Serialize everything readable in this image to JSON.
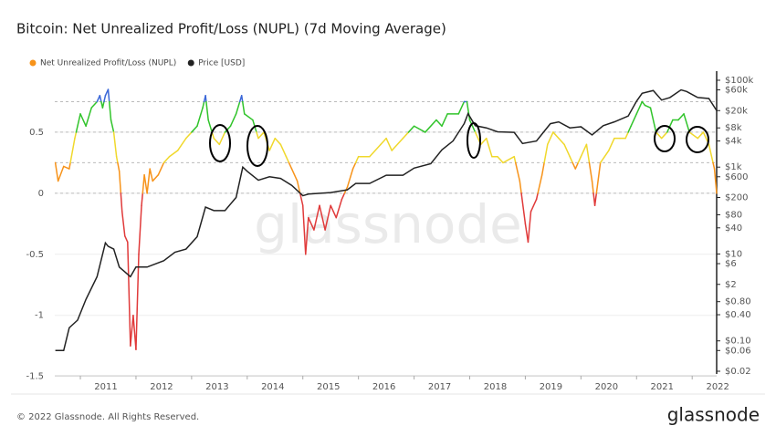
{
  "chart_data": {
    "type": "line",
    "title": "Bitcoin: Net Unrealized Profit/Loss (NUPL) (7d Moving Average)",
    "watermark": "glassnode",
    "footer": "© 2022 Glassnode. All Rights Reserved.",
    "brand": "glassnode",
    "xlim": [
      2010.54,
      2022.44
    ],
    "xticks": [
      2011,
      2012,
      2013,
      2014,
      2015,
      2016,
      2017,
      2018,
      2019,
      2020,
      2021,
      2022
    ],
    "ylim": [
      -1.48,
      1.0
    ],
    "yticks": [
      -1.5,
      -1,
      -0.5,
      0,
      0.5
    ],
    "y2lim": [
      0.0173,
      162000
    ],
    "y2log": true,
    "y2ticks": [
      {
        "value": 0.02,
        "label": "$0.02"
      },
      {
        "value": 0.06,
        "label": "$0.06"
      },
      {
        "value": 0.1,
        "label": "$0.10"
      },
      {
        "value": 0.4,
        "label": "$0.40"
      },
      {
        "value": 0.8,
        "label": "$0.80"
      },
      {
        "value": 2,
        "label": "$2"
      },
      {
        "value": 6,
        "label": "$6"
      },
      {
        "value": 10,
        "label": "$10"
      },
      {
        "value": 40,
        "label": "$40"
      },
      {
        "value": 80,
        "label": "$80"
      },
      {
        "value": 200,
        "label": "$200"
      },
      {
        "value": 600,
        "label": "$600"
      },
      {
        "value": 1000,
        "label": "$1k"
      },
      {
        "value": 4000,
        "label": "$4k"
      },
      {
        "value": 8000,
        "label": "$8k"
      },
      {
        "value": 20000,
        "label": "$20k"
      },
      {
        "value": 60000,
        "label": "$60k"
      },
      {
        "value": 100000,
        "label": "$100k"
      }
    ],
    "zones": [
      {
        "below": 0,
        "color": "#e03a3a"
      },
      {
        "below": 0.25,
        "color": "#f7931a"
      },
      {
        "below": 0.5,
        "color": "#f0d82c"
      },
      {
        "below": 0.75,
        "color": "#31c42b"
      },
      {
        "color": "#3a67d8"
      }
    ],
    "series": [
      {
        "name": "Net Unrealized Profit/Loss (NUPL)",
        "color": "#f7931a",
        "zoned": true,
        "x": [
          2010.55,
          2010.6,
          2010.7,
          2010.8,
          2010.9,
          2011.0,
          2011.1,
          2011.2,
          2011.3,
          2011.35,
          2011.4,
          2011.45,
          2011.5,
          2011.55,
          2011.6,
          2011.65,
          2011.7,
          2011.75,
          2011.8,
          2011.85,
          2011.9,
          2011.95,
          2012.0,
          2012.05,
          2012.1,
          2012.15,
          2012.2,
          2012.25,
          2012.3,
          2012.4,
          2012.5,
          2012.6,
          2012.75,
          2012.9,
          2013.0,
          2013.1,
          2013.2,
          2013.25,
          2013.3,
          2013.4,
          2013.5,
          2013.6,
          2013.7,
          2013.8,
          2013.9,
          2013.95,
          2014.1,
          2014.2,
          2014.3,
          2014.4,
          2014.5,
          2014.6,
          2014.7,
          2014.8,
          2014.9,
          2015.0,
          2015.05,
          2015.1,
          2015.2,
          2015.3,
          2015.4,
          2015.5,
          2015.6,
          2015.7,
          2015.8,
          2015.9,
          2016.0,
          2016.2,
          2016.4,
          2016.5,
          2016.6,
          2016.8,
          2016.9,
          2017.0,
          2017.2,
          2017.4,
          2017.5,
          2017.6,
          2017.8,
          2017.9,
          2017.95,
          2018.0,
          2018.1,
          2018.2,
          2018.3,
          2018.4,
          2018.5,
          2018.6,
          2018.8,
          2018.9,
          2019.0,
          2019.05,
          2019.1,
          2019.2,
          2019.3,
          2019.4,
          2019.5,
          2019.6,
          2019.7,
          2019.8,
          2019.9,
          2020.0,
          2020.1,
          2020.2,
          2020.25,
          2020.35,
          2020.5,
          2020.6,
          2020.7,
          2020.8,
          2020.9,
          2021.0,
          2021.1,
          2021.15,
          2021.25,
          2021.35,
          2021.45,
          2021.55,
          2021.65,
          2021.75,
          2021.85,
          2021.95,
          2022.1,
          2022.2,
          2022.3,
          2022.4,
          2022.44
        ],
        "values": [
          0.25,
          0.1,
          0.22,
          0.2,
          0.45,
          0.65,
          0.55,
          0.7,
          0.75,
          0.8,
          0.7,
          0.8,
          0.85,
          0.6,
          0.5,
          0.3,
          0.18,
          -0.15,
          -0.35,
          -0.4,
          -1.25,
          -1.0,
          -1.28,
          -0.5,
          -0.1,
          0.15,
          0.0,
          0.2,
          0.1,
          0.15,
          0.25,
          0.3,
          0.35,
          0.45,
          0.5,
          0.55,
          0.7,
          0.8,
          0.6,
          0.45,
          0.4,
          0.5,
          0.55,
          0.65,
          0.8,
          0.65,
          0.6,
          0.45,
          0.5,
          0.35,
          0.45,
          0.4,
          0.3,
          0.2,
          0.1,
          -0.1,
          -0.5,
          -0.2,
          -0.3,
          -0.1,
          -0.3,
          -0.1,
          -0.2,
          -0.05,
          0.05,
          0.2,
          0.3,
          0.3,
          0.4,
          0.45,
          0.35,
          0.45,
          0.5,
          0.55,
          0.5,
          0.6,
          0.55,
          0.65,
          0.65,
          0.75,
          0.75,
          0.6,
          0.5,
          0.4,
          0.45,
          0.3,
          0.3,
          0.25,
          0.3,
          0.1,
          -0.25,
          -0.4,
          -0.15,
          -0.05,
          0.15,
          0.4,
          0.5,
          0.45,
          0.4,
          0.3,
          0.2,
          0.3,
          0.4,
          0.1,
          -0.1,
          0.25,
          0.35,
          0.45,
          0.45,
          0.45,
          0.55,
          0.65,
          0.75,
          0.72,
          0.7,
          0.5,
          0.45,
          0.5,
          0.6,
          0.6,
          0.65,
          0.5,
          0.45,
          0.5,
          0.4,
          0.2,
          0.0
        ]
      },
      {
        "name": "Price [USD]",
        "color": "#222222",
        "axis": "y2",
        "x": [
          2010.55,
          2010.7,
          2010.8,
          2010.95,
          2011.1,
          2011.3,
          2011.45,
          2011.5,
          2011.6,
          2011.7,
          2011.9,
          2012.0,
          2012.2,
          2012.5,
          2012.7,
          2012.9,
          2013.1,
          2013.25,
          2013.4,
          2013.6,
          2013.8,
          2013.92,
          2014.0,
          2014.2,
          2014.4,
          2014.6,
          2014.8,
          2015.0,
          2015.1,
          2015.5,
          2015.8,
          2015.95,
          2016.2,
          2016.5,
          2016.8,
          2017.0,
          2017.3,
          2017.5,
          2017.7,
          2017.9,
          2017.97,
          2018.1,
          2018.3,
          2018.5,
          2018.8,
          2018.95,
          2019.2,
          2019.45,
          2019.6,
          2019.8,
          2020.0,
          2020.2,
          2020.4,
          2020.6,
          2020.85,
          2021.0,
          2021.1,
          2021.3,
          2021.45,
          2021.6,
          2021.8,
          2021.9,
          2022.1,
          2022.3,
          2022.44
        ],
        "values": [
          0.06,
          0.06,
          0.2,
          0.3,
          0.9,
          3,
          18,
          15,
          13,
          5,
          3,
          5,
          5,
          7,
          11,
          13,
          25,
          120,
          100,
          100,
          200,
          1000,
          800,
          500,
          600,
          550,
          380,
          220,
          240,
          260,
          300,
          420,
          420,
          650,
          650,
          950,
          1200,
          2500,
          4000,
          10000,
          17000,
          9000,
          8000,
          6500,
          6300,
          3500,
          4000,
          10000,
          11000,
          8000,
          8500,
          5500,
          9000,
          11000,
          15000,
          33000,
          50000,
          58000,
          35000,
          40000,
          60000,
          55000,
          40000,
          38000,
          20000
        ]
      }
    ]
  }
}
